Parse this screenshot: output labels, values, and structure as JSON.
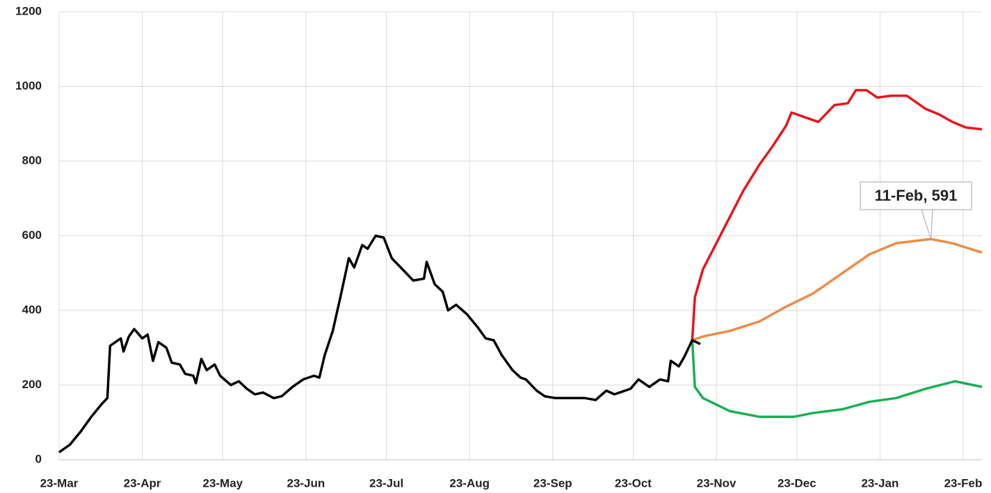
{
  "chart_data": {
    "type": "line",
    "xlim": [
      0,
      344
    ],
    "xticks": [
      {
        "value": 0,
        "label": "23-Mar"
      },
      {
        "value": 31,
        "label": "23-Apr"
      },
      {
        "value": 61,
        "label": "23-May"
      },
      {
        "value": 92,
        "label": "23-Jun"
      },
      {
        "value": 122,
        "label": "23-Jul"
      },
      {
        "value": 153,
        "label": "23-Aug"
      },
      {
        "value": 184,
        "label": "23-Sep"
      },
      {
        "value": 214,
        "label": "23-Oct"
      },
      {
        "value": 245,
        "label": "23-Nov"
      },
      {
        "value": 275,
        "label": "23-Dec"
      },
      {
        "value": 306,
        "label": "23-Jan"
      },
      {
        "value": 337,
        "label": "23-Feb"
      }
    ],
    "ylim": [
      0,
      1200
    ],
    "yticks": [
      0,
      200,
      400,
      600,
      800,
      1000,
      1200
    ],
    "grid": true,
    "series": [
      {
        "color": "#e8141b",
        "x": [
          236,
          237,
          240,
          245,
          250,
          255,
          261,
          266,
          271,
          273,
          279,
          283,
          289,
          294,
          297,
          301,
          305,
          310,
          316,
          323,
          328,
          333,
          338,
          344
        ],
        "values": [
          320,
          435,
          510,
          580,
          650,
          720,
          790,
          840,
          895,
          930,
          915,
          905,
          950,
          955,
          990,
          990,
          970,
          975,
          975,
          940,
          925,
          905,
          890,
          885
        ]
      },
      {
        "color": "#ed8b45",
        "x": [
          236,
          240,
          250,
          261,
          271,
          281,
          292,
          302,
          312,
          325,
          333,
          344
        ],
        "values": [
          320,
          330,
          345,
          370,
          410,
          445,
          500,
          550,
          580,
          591,
          580,
          555
        ]
      },
      {
        "color": "#1aaf54",
        "x": [
          236,
          237,
          240,
          250,
          261,
          274,
          281,
          292,
          302,
          312,
          323,
          334,
          344
        ],
        "values": [
          320,
          195,
          165,
          130,
          115,
          115,
          125,
          135,
          155,
          165,
          190,
          210,
          195
        ]
      },
      {
        "color": "#000000",
        "x": [
          0,
          4,
          8,
          12,
          16,
          18,
          19,
          21,
          23,
          24,
          26,
          28,
          31,
          33,
          35,
          37,
          40,
          42,
          45,
          47,
          50,
          51,
          53,
          55,
          58,
          60,
          64,
          67,
          70,
          73,
          76,
          80,
          83,
          87,
          91,
          95,
          97,
          99,
          102,
          105,
          108,
          110,
          113,
          115,
          118,
          121,
          124,
          128,
          132,
          136,
          137,
          140,
          143,
          145,
          148,
          152,
          156,
          159,
          162,
          165,
          169,
          172,
          174,
          178,
          181,
          185,
          191,
          196,
          200,
          204,
          207,
          213,
          216,
          220,
          224,
          227,
          228,
          231,
          233,
          236,
          239
        ],
        "values": [
          20,
          40,
          75,
          115,
          150,
          165,
          305,
          315,
          325,
          290,
          330,
          350,
          325,
          335,
          265,
          315,
          300,
          260,
          255,
          230,
          225,
          205,
          270,
          240,
          255,
          225,
          200,
          210,
          190,
          175,
          180,
          165,
          170,
          195,
          215,
          225,
          220,
          280,
          345,
          440,
          540,
          515,
          575,
          565,
          600,
          595,
          540,
          510,
          480,
          485,
          530,
          470,
          450,
          400,
          415,
          390,
          355,
          325,
          320,
          280,
          240,
          220,
          215,
          185,
          170,
          165,
          165,
          165,
          160,
          185,
          175,
          190,
          215,
          195,
          215,
          210,
          265,
          250,
          275,
          320,
          310
        ]
      }
    ],
    "annotation": {
      "text": "11-Feb, 591",
      "x": 325,
      "y": 591
    }
  }
}
